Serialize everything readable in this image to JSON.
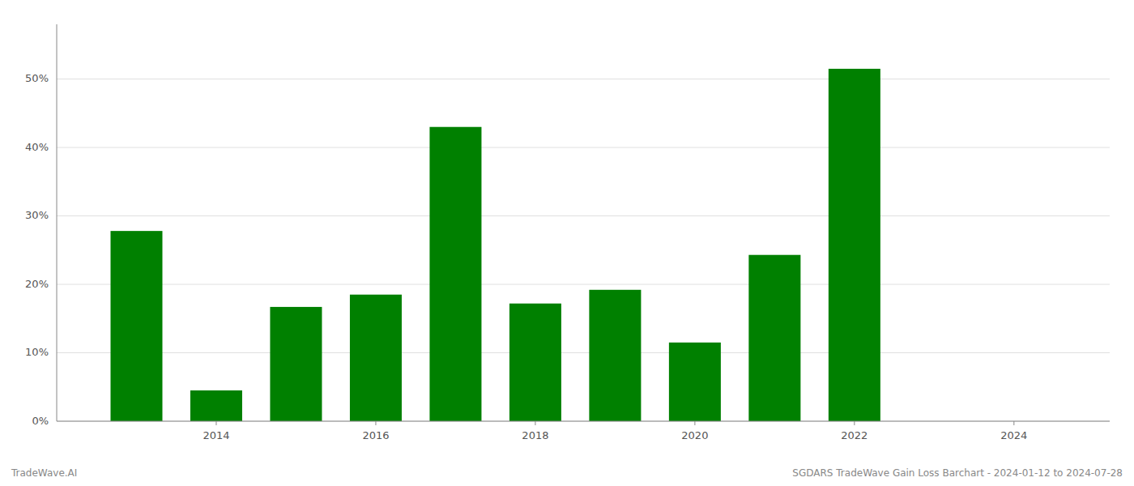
{
  "chart_data": {
    "type": "bar",
    "x": [
      2013,
      2014,
      2015,
      2016,
      2017,
      2018,
      2019,
      2020,
      2021,
      2022,
      2023
    ],
    "values": [
      27.8,
      4.5,
      16.7,
      18.5,
      43.0,
      17.2,
      19.2,
      11.5,
      24.3,
      51.5,
      0.0
    ],
    "color": "#008000",
    "xlim": [
      2012.0,
      2025.2
    ],
    "xticks": [
      2014,
      2016,
      2018,
      2020,
      2022,
      2024
    ],
    "ylim": [
      0,
      58
    ],
    "yticks": [
      {
        "value": 0,
        "label": "0%"
      },
      {
        "value": 10,
        "label": "10%"
      },
      {
        "value": 20,
        "label": "20%"
      },
      {
        "value": 30,
        "label": "30%"
      },
      {
        "value": 40,
        "label": "40%"
      },
      {
        "value": 50,
        "label": "50%"
      }
    ],
    "grid": true,
    "annotations": [
      "TradeWave.AI",
      "SGDARS TradeWave Gain Loss Barchart - 2024-01-12 to 2024-07-28"
    ]
  }
}
